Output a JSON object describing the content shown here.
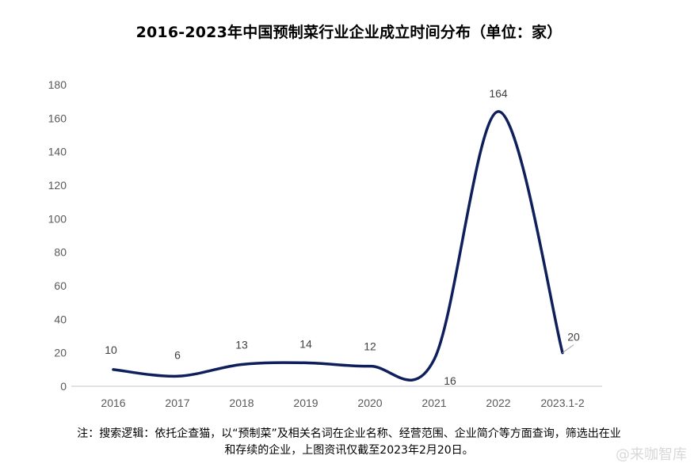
{
  "chart_data": {
    "type": "line",
    "title": "2016-2023年中国预制菜行业企业成立时间分布（单位：家）",
    "categories": [
      "2016",
      "2017",
      "2018",
      "2019",
      "2020",
      "2021",
      "2022",
      "2023.1-2"
    ],
    "values": [
      10,
      6,
      13,
      14,
      12,
      16,
      164,
      20
    ],
    "ylim": [
      0,
      180
    ],
    "yticks": [
      0,
      20,
      40,
      60,
      80,
      100,
      120,
      140,
      160,
      180
    ],
    "grid": false,
    "smooth": true,
    "line_color": "#0f1f5c"
  },
  "note": {
    "line1": "注：搜索逻辑：依托企查猫，以“预制菜”及相关名词在企业名称、经营范围、企业简介等方面查询，筛选出在业",
    "line2": "和存续的企业，上图资讯仅截至2023年2月20日。"
  },
  "watermark": "@来咖智库"
}
